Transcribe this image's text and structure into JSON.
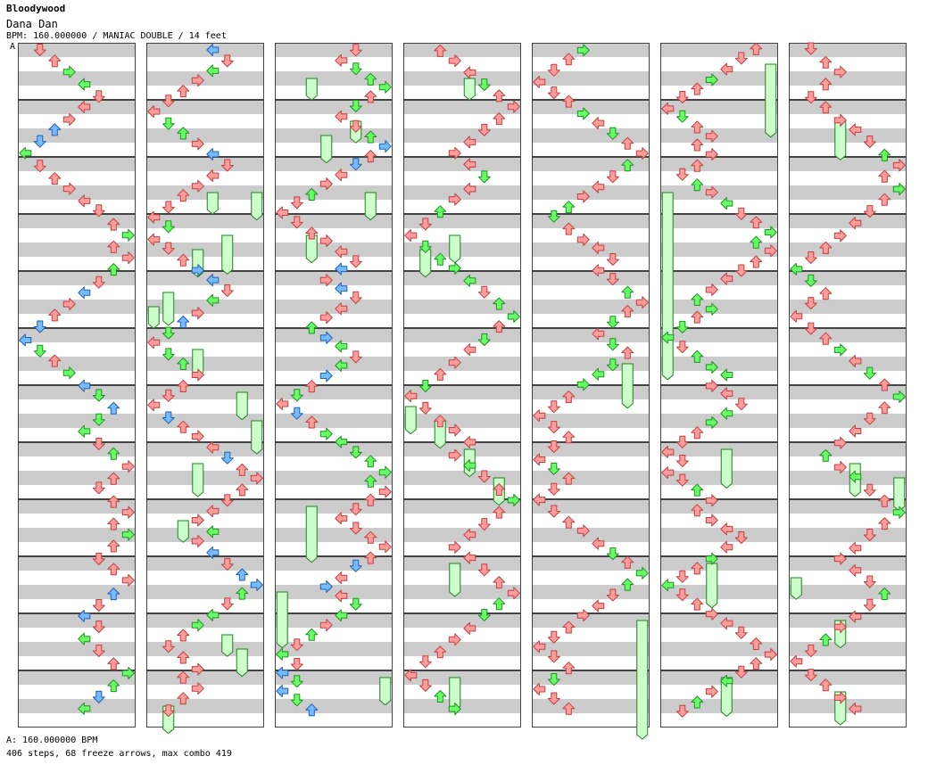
{
  "header": {
    "artist": "Bloodywood",
    "title": "Dana Dan",
    "info": "BPM: 160.000000 / MANIAC DOUBLE / 14 feet",
    "bpm_marker": "A"
  },
  "footer": {
    "bpm": "A: 160.000000 BPM",
    "stats": "406 steps, 68 freeze arrows, max combo 419"
  },
  "chart": {
    "columns": 7,
    "measures_per_column": 12,
    "lanes": 8,
    "colors": {
      "quarter": "#ff9d9d",
      "quarter_stroke": "#c04040",
      "eighth": "#66ff66",
      "eighth_stroke": "#209020",
      "sixteenth": "#77bbff",
      "sixteenth_stroke": "#2060b0",
      "freeze": "#ccffcc",
      "freeze_stroke": "#208020",
      "stripe": "#cccccc",
      "border": "#444444"
    }
  }
}
